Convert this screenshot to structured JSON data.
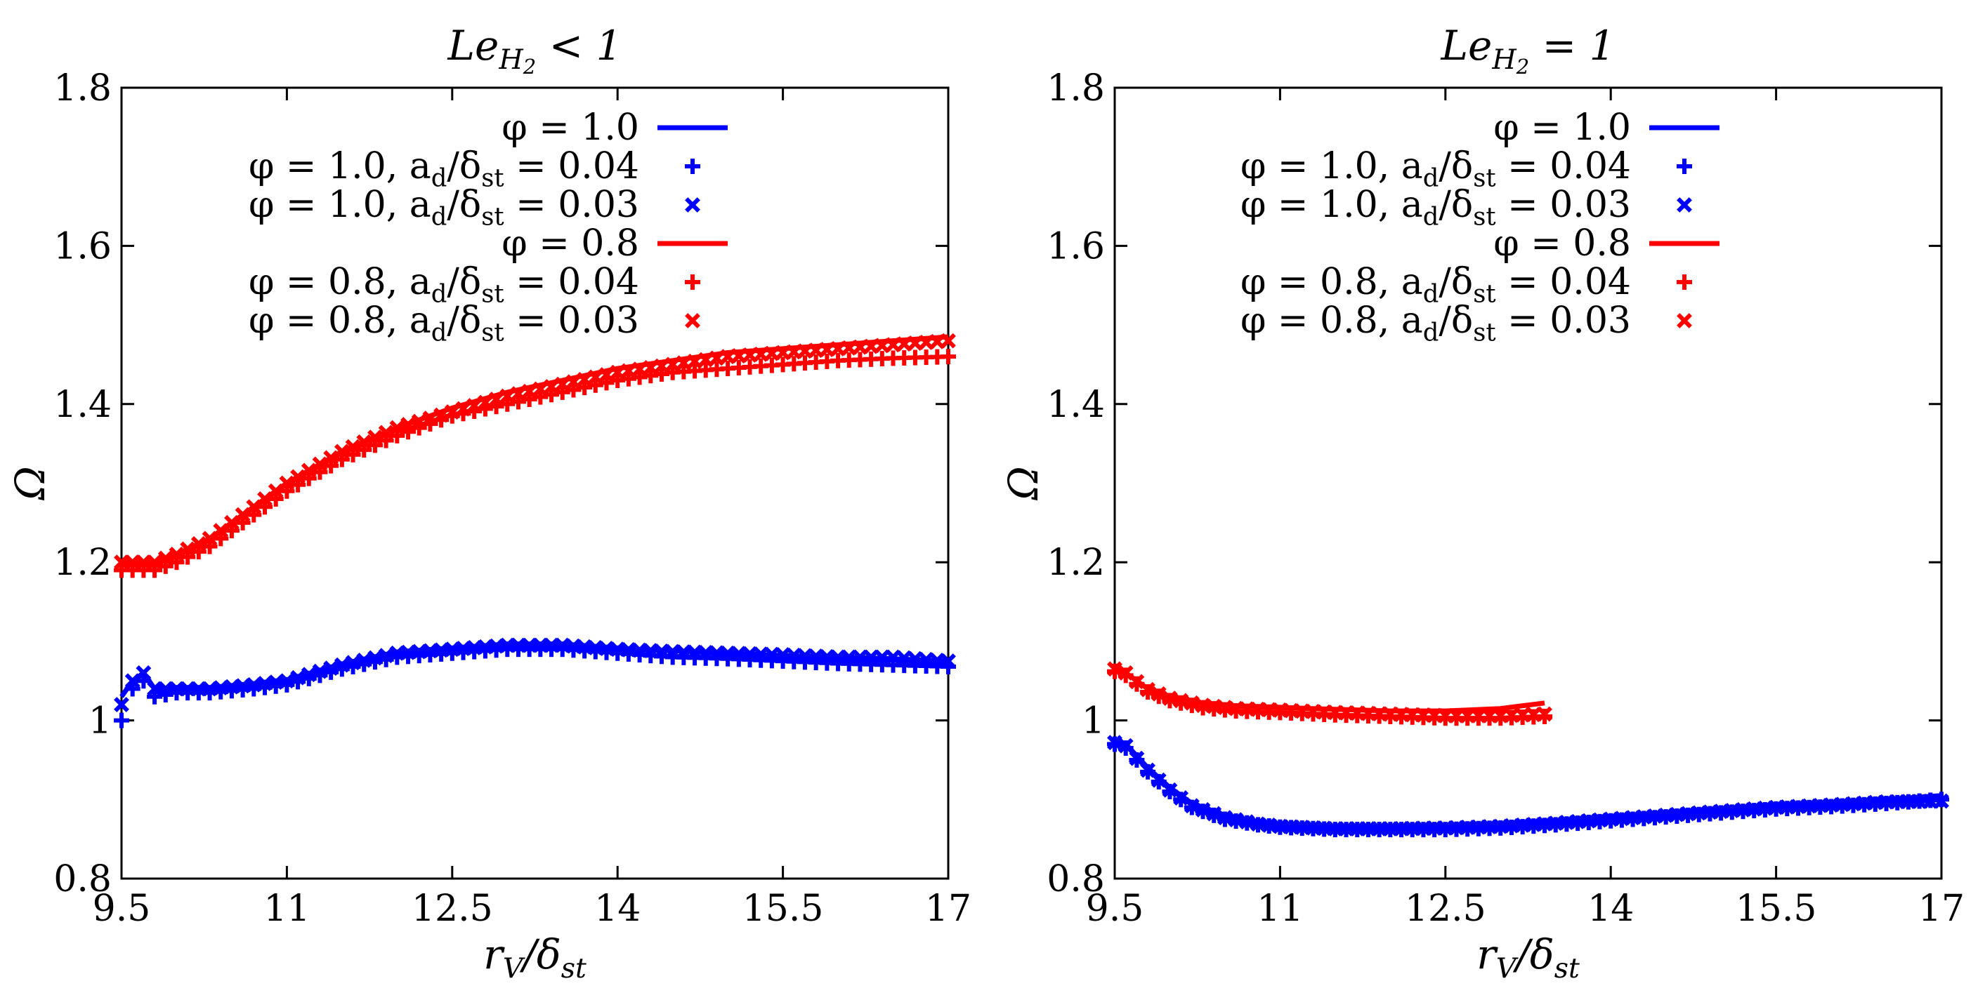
{
  "chart_data": [
    {
      "type": "line",
      "title": "Le_{H_2} < 1",
      "xlabel": "r_V/δ_st",
      "ylabel": "Ω",
      "xlim": [
        9.5,
        17
      ],
      "ylim": [
        0.8,
        1.8
      ],
      "xticks": [
        "9.5",
        "11",
        "12.5",
        "14",
        "15.5",
        "17"
      ],
      "yticks": [
        "0.8",
        "1",
        "1.2",
        "1.4",
        "1.6",
        "1.8"
      ],
      "legend_position": "top-left",
      "series": [
        {
          "name": "φ = 1.0",
          "style": "line",
          "color": "#0000ff",
          "x": [
            9.5,
            9.6,
            9.7,
            9.8,
            10.0,
            10.3,
            10.7,
            11.0,
            11.5,
            12.0,
            12.5,
            13.0,
            13.5,
            14.0,
            14.5,
            15.0,
            15.5,
            16.0,
            16.5,
            17.0
          ],
          "y": [
            1.03,
            1.05,
            1.06,
            1.04,
            1.04,
            1.04,
            1.045,
            1.05,
            1.07,
            1.085,
            1.09,
            1.095,
            1.095,
            1.09,
            1.088,
            1.085,
            1.082,
            1.08,
            1.078,
            1.075
          ]
        },
        {
          "name": "φ = 1.0, a_d/δ_st = 0.04",
          "style": "plus",
          "color": "#0000ff",
          "x": [
            9.5,
            9.6,
            9.7,
            9.8,
            10.0,
            10.3,
            10.7,
            11.0,
            11.5,
            12.0,
            12.5,
            13.0,
            13.5,
            14.0,
            14.5,
            15.0,
            15.5,
            16.0,
            16.5,
            17.0
          ],
          "y": [
            1.0,
            1.04,
            1.05,
            1.03,
            1.035,
            1.035,
            1.04,
            1.045,
            1.065,
            1.08,
            1.085,
            1.09,
            1.09,
            1.085,
            1.08,
            1.078,
            1.075,
            1.072,
            1.07,
            1.068
          ]
        },
        {
          "name": "φ = 1.0, a_d/δ_st = 0.03",
          "style": "cross",
          "color": "#0000ff",
          "x": [
            9.5,
            9.6,
            9.7,
            9.8,
            10.0,
            10.3,
            10.7,
            11.0,
            11.5,
            12.0,
            12.5,
            13.0,
            13.5,
            14.0,
            14.5,
            15.0,
            15.5,
            16.0,
            16.5,
            17.0
          ],
          "y": [
            1.02,
            1.05,
            1.06,
            1.04,
            1.04,
            1.04,
            1.045,
            1.05,
            1.07,
            1.085,
            1.09,
            1.095,
            1.095,
            1.09,
            1.087,
            1.085,
            1.083,
            1.08,
            1.08,
            1.075
          ]
        },
        {
          "name": "φ = 0.8",
          "style": "line",
          "color": "#ff0000",
          "x": [
            9.5,
            9.8,
            10.0,
            10.3,
            10.7,
            11.0,
            11.5,
            12.0,
            12.5,
            13.0,
            13.5,
            14.0,
            14.5,
            15.0,
            15.5,
            16.0,
            16.5,
            17.0
          ],
          "y": [
            1.2,
            1.2,
            1.21,
            1.23,
            1.27,
            1.3,
            1.34,
            1.37,
            1.395,
            1.415,
            1.43,
            1.445,
            1.455,
            1.465,
            1.47,
            1.475,
            1.48,
            1.485
          ]
        },
        {
          "name": "φ = 0.8, a_d/δ_st = 0.04",
          "style": "plus",
          "color": "#ff0000",
          "x": [
            9.5,
            9.8,
            10.0,
            10.3,
            10.7,
            11.0,
            11.5,
            12.0,
            12.5,
            13.0,
            13.5,
            14.0,
            14.5,
            15.0,
            15.5,
            16.0,
            16.5,
            17.0
          ],
          "y": [
            1.19,
            1.19,
            1.2,
            1.22,
            1.26,
            1.29,
            1.33,
            1.36,
            1.385,
            1.4,
            1.415,
            1.43,
            1.44,
            1.445,
            1.45,
            1.455,
            1.458,
            1.46
          ]
        },
        {
          "name": "φ = 0.8, a_d/δ_st = 0.03",
          "style": "cross",
          "color": "#ff0000",
          "x": [
            9.5,
            9.8,
            10.0,
            10.3,
            10.7,
            11.0,
            11.5,
            12.0,
            12.5,
            13.0,
            13.5,
            14.0,
            14.5,
            15.0,
            15.5,
            16.0,
            16.5,
            17.0
          ],
          "y": [
            1.2,
            1.2,
            1.21,
            1.23,
            1.27,
            1.3,
            1.34,
            1.37,
            1.39,
            1.41,
            1.425,
            1.44,
            1.45,
            1.46,
            1.465,
            1.47,
            1.475,
            1.48
          ]
        }
      ]
    },
    {
      "type": "line",
      "title": "Le_{H_2} = 1",
      "xlabel": "r_V/δ_st",
      "ylabel": "Ω",
      "xlim": [
        9.5,
        17
      ],
      "ylim": [
        0.8,
        1.8
      ],
      "xticks": [
        "9.5",
        "11",
        "12.5",
        "14",
        "15.5",
        "17"
      ],
      "yticks": [
        "0.8",
        "1",
        "1.2",
        "1.4",
        "1.6",
        "1.8"
      ],
      "legend_position": "top-left",
      "series": [
        {
          "name": "φ = 1.0",
          "style": "line",
          "color": "#0000ff",
          "x": [
            9.5,
            9.6,
            9.7,
            9.8,
            10.0,
            10.2,
            10.5,
            10.8,
            11.0,
            11.5,
            12.0,
            12.5,
            13.0,
            13.5,
            14.0,
            14.5,
            15.0,
            15.5,
            16.0,
            16.5,
            17.0
          ],
          "y": [
            0.975,
            0.97,
            0.955,
            0.94,
            0.915,
            0.895,
            0.88,
            0.872,
            0.868,
            0.865,
            0.865,
            0.866,
            0.868,
            0.872,
            0.877,
            0.882,
            0.887,
            0.892,
            0.895,
            0.9,
            0.905
          ]
        },
        {
          "name": "φ = 1.0, a_d/δ_st = 0.04",
          "style": "plus",
          "color": "#0000ff",
          "x": [
            9.5,
            9.6,
            9.7,
            9.8,
            10.0,
            10.2,
            10.5,
            10.8,
            11.0,
            11.5,
            12.0,
            12.5,
            13.0,
            13.5,
            14.0,
            14.5,
            15.0,
            15.5,
            16.0,
            16.5,
            17.0
          ],
          "y": [
            0.97,
            0.965,
            0.95,
            0.935,
            0.91,
            0.89,
            0.875,
            0.868,
            0.865,
            0.862,
            0.862,
            0.862,
            0.864,
            0.868,
            0.873,
            0.878,
            0.883,
            0.888,
            0.891,
            0.895,
            0.9
          ]
        },
        {
          "name": "φ = 1.0, a_d/δ_st = 0.03",
          "style": "cross",
          "color": "#0000ff",
          "x": [
            9.5,
            9.6,
            9.7,
            9.8,
            10.0,
            10.2,
            10.5,
            10.8,
            11.0,
            11.5,
            12.0,
            12.5,
            13.0,
            13.5,
            14.0,
            14.5,
            15.0,
            15.5,
            16.0,
            16.5,
            17.0
          ],
          "y": [
            0.972,
            0.968,
            0.952,
            0.937,
            0.912,
            0.892,
            0.877,
            0.869,
            0.866,
            0.863,
            0.863,
            0.864,
            0.866,
            0.87,
            0.875,
            0.88,
            0.885,
            0.89,
            0.893,
            0.897,
            0.898
          ]
        },
        {
          "name": "φ = 0.8",
          "style": "line",
          "color": "#ff0000",
          "x": [
            9.5,
            9.6,
            9.7,
            9.8,
            10.0,
            10.3,
            10.6,
            11.0,
            11.5,
            12.0,
            12.5,
            13.0,
            13.4
          ],
          "y": [
            1.065,
            1.06,
            1.05,
            1.04,
            1.03,
            1.022,
            1.018,
            1.016,
            1.014,
            1.012,
            1.012,
            1.015,
            1.022
          ]
        },
        {
          "name": "φ = 0.8, a_d/δ_st = 0.04",
          "style": "plus",
          "color": "#ff0000",
          "x": [
            9.5,
            9.6,
            9.7,
            9.8,
            10.0,
            10.3,
            10.6,
            11.0,
            11.5,
            12.0,
            12.5,
            13.0,
            13.4
          ],
          "y": [
            1.062,
            1.057,
            1.046,
            1.036,
            1.025,
            1.016,
            1.012,
            1.01,
            1.007,
            1.005,
            1.003,
            1.003,
            1.005
          ]
        },
        {
          "name": "φ = 0.8, a_d/δ_st = 0.03",
          "style": "cross",
          "color": "#ff0000",
          "x": [
            9.5,
            9.6,
            9.7,
            9.8,
            10.0,
            10.3,
            10.6,
            11.0,
            11.5,
            12.0,
            12.5,
            13.0,
            13.4
          ],
          "y": [
            1.065,
            1.06,
            1.049,
            1.039,
            1.028,
            1.019,
            1.015,
            1.013,
            1.01,
            1.008,
            1.006,
            1.006,
            1.008
          ]
        }
      ]
    }
  ]
}
